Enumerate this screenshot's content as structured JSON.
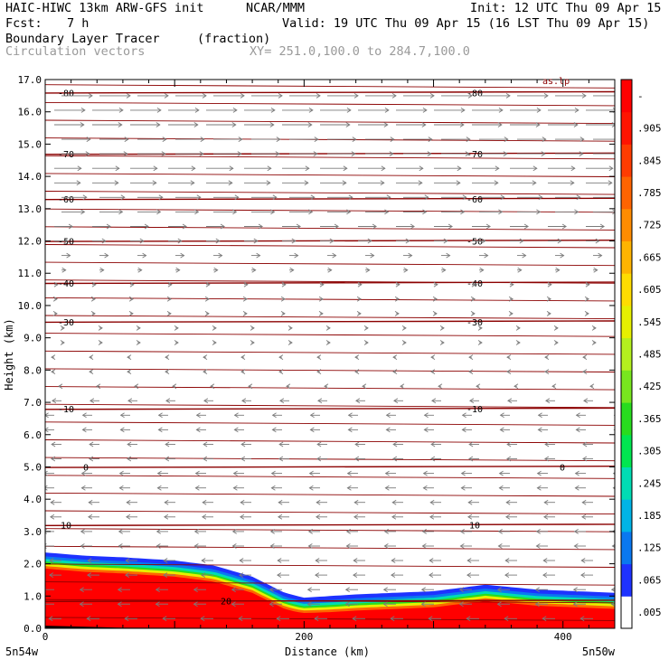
{
  "header": {
    "model": "HAIC-HIWC 13km ARW-GFS init",
    "org": "NCAR/MMM",
    "init": "Init: 12 UTC Thu 09 Apr 15",
    "fcst_label": "Fcst:",
    "fcst_value": "7 h",
    "valid": "Valid: 19 UTC Thu 09 Apr 15 (16 LST Thu 09 Apr 15)",
    "field": "Boundary Layer Tracer",
    "field_units": "(fraction)",
    "vectors": "Circulation vectors",
    "xy": "XY= 251.0,100.0 to 284.7,100.0"
  },
  "colors": {
    "contour": "#8b0000",
    "vector": "#7a7a7a",
    "grey_text": "#9a9a9a"
  },
  "chart_data": {
    "type": "heatmap",
    "xlabel": "Distance (km)",
    "ylabel": "Height (km)",
    "xlim": [
      0,
      440
    ],
    "ylim": [
      0,
      17
    ],
    "x_ticks": [
      "0",
      "200",
      "400"
    ],
    "y_ticks": [
      "0.0",
      "1.0",
      "2.0",
      "3.0",
      "4.0",
      "5.0",
      "6.0",
      "7.0",
      "8.0",
      "9.0",
      "10.0",
      "11.0",
      "12.0",
      "13.0",
      "14.0",
      "15.0",
      "16.0",
      "17.0"
    ],
    "x_endpoints": {
      "left": "5n54w",
      "right": "5n50w"
    },
    "colorbar": {
      "labels": [
        ".005",
        ".065",
        ".125",
        ".185",
        ".245",
        ".305",
        ".365",
        ".425",
        ".485",
        ".545",
        ".605",
        ".665",
        ".725",
        ".785",
        ".845",
        ".905",
        "-"
      ],
      "colors": [
        "#ffffff",
        "#1e32ff",
        "#0a78f0",
        "#00b4e6",
        "#00dcb4",
        "#00e650",
        "#28dc1e",
        "#78e61e",
        "#b4f01e",
        "#e6f000",
        "#ffdc00",
        "#ffb400",
        "#ff8c00",
        "#ff6400",
        "#ff3c00",
        "#ff1400",
        "#ff0000"
      ]
    },
    "temperature_contours": [
      {
        "label": "-80",
        "height_km": 16.6
      },
      {
        "label": "-70",
        "height_km": 14.7
      },
      {
        "label": "-60",
        "height_km": 13.3
      },
      {
        "label": "-50",
        "height_km": 12.0
      },
      {
        "label": "-40",
        "height_km": 10.7
      },
      {
        "label": "-30",
        "height_km": 9.5
      },
      {
        "label": "-10",
        "height_km": 6.8
      },
      {
        "label": "0",
        "height_km": 5.0
      },
      {
        "label": "10",
        "height_km": 3.2
      },
      {
        "label": "20",
        "height_km": 0.85
      }
    ],
    "tracer_top_km": [
      {
        "x": 0,
        "top": 2.35
      },
      {
        "x": 30,
        "top": 2.25
      },
      {
        "x": 60,
        "top": 2.2
      },
      {
        "x": 100,
        "top": 2.1
      },
      {
        "x": 130,
        "top": 1.95
      },
      {
        "x": 160,
        "top": 1.6
      },
      {
        "x": 185,
        "top": 1.1
      },
      {
        "x": 200,
        "top": 0.95
      },
      {
        "x": 240,
        "top": 1.05
      },
      {
        "x": 300,
        "top": 1.15
      },
      {
        "x": 340,
        "top": 1.35
      },
      {
        "x": 380,
        "top": 1.2
      },
      {
        "x": 440,
        "top": 1.1
      }
    ],
    "corner_annotation": "as.lp"
  }
}
